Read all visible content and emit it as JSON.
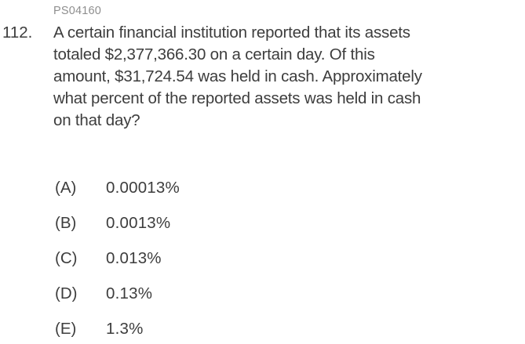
{
  "page": {
    "background_color": "#ffffff",
    "text_color": "#3d3d3d",
    "tag_color": "#8e8e8e"
  },
  "question": {
    "id_tag": "PS04160",
    "number": "112.",
    "text_lines": [
      "A certain financial institution reported that its assets",
      "totaled $2,377,366.30 on a certain day. Of this",
      "amount, $31,724.54 was held in cash. Approximately",
      "what percent of the reported assets was held in cash",
      "on that day?"
    ]
  },
  "options": [
    {
      "label": "(A)",
      "value": "0.00013%"
    },
    {
      "label": "(B)",
      "value": "0.0013%"
    },
    {
      "label": "(C)",
      "value": "0.013%"
    },
    {
      "label": "(D)",
      "value": "0.13%"
    },
    {
      "label": "(E)",
      "value": "1.3%"
    }
  ]
}
